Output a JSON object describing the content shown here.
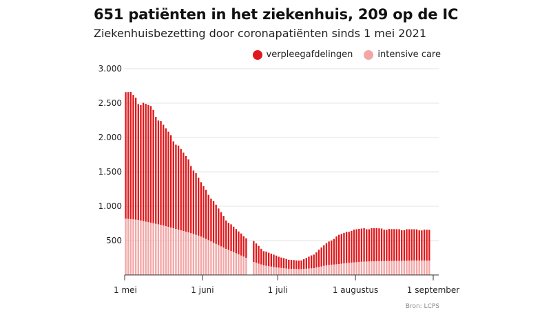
{
  "header": {
    "title": "651 patiënten in het ziekenhuis, 209 op de IC",
    "subtitle": "Ziekenhuisbezetting door coronapatiënten sinds 1 mei 2021"
  },
  "source": "Bron: LCPS",
  "colors": {
    "ward": "#e0181b",
    "ic": "#f4a6a6",
    "grid": "#e3e3e3",
    "axis": "#333333"
  },
  "chart_data": {
    "type": "bar",
    "stacked": true,
    "title": "651 patiënten in het ziekenhuis, 209 op de IC",
    "subtitle": "Ziekenhuisbezetting door coronapatiënten sinds 1 mei 2021",
    "xlabel": "",
    "ylabel": "",
    "ylim": [
      0,
      3000
    ],
    "yticks": [
      500,
      1000,
      1500,
      2000,
      2500,
      3000
    ],
    "ytick_labels": [
      "500",
      "1.000",
      "1.500",
      "2.000",
      "2.500",
      "3.000"
    ],
    "grid": true,
    "legend_position": "top-right",
    "start_date": "2021-05-01",
    "days": 122,
    "xticks": [
      {
        "label": "1 mei",
        "day": 0
      },
      {
        "label": "1 juni",
        "day": 31
      },
      {
        "label": "1 juli",
        "day": 61
      },
      {
        "label": "1 augustus",
        "day": 92
      },
      {
        "label": "1 september",
        "day": 123
      }
    ],
    "missing_days": [
      49,
      50
    ],
    "series": [
      {
        "name": "intensive care",
        "color": "#f4a6a6",
        "anchors": [
          [
            0,
            820
          ],
          [
            5,
            800
          ],
          [
            10,
            760
          ],
          [
            15,
            720
          ],
          [
            20,
            670
          ],
          [
            25,
            620
          ],
          [
            30,
            560
          ],
          [
            35,
            470
          ],
          [
            40,
            380
          ],
          [
            45,
            300
          ],
          [
            48,
            250
          ],
          [
            51,
            190
          ],
          [
            55,
            140
          ],
          [
            60,
            110
          ],
          [
            65,
            90
          ],
          [
            70,
            85
          ],
          [
            75,
            100
          ],
          [
            80,
            140
          ],
          [
            85,
            160
          ],
          [
            90,
            180
          ],
          [
            95,
            195
          ],
          [
            100,
            200
          ],
          [
            110,
            205
          ],
          [
            115,
            210
          ],
          [
            123,
            209
          ]
        ]
      },
      {
        "name": "verpleegafdelingen",
        "color": "#e0181b",
        "anchors": [
          [
            0,
            1820
          ],
          [
            2,
            1830
          ],
          [
            5,
            1720
          ],
          [
            10,
            1680
          ],
          [
            15,
            1450
          ],
          [
            20,
            1250
          ],
          [
            25,
            1050
          ],
          [
            30,
            780
          ],
          [
            35,
            600
          ],
          [
            40,
            420
          ],
          [
            45,
            330
          ],
          [
            48,
            290
          ],
          [
            51,
            300
          ],
          [
            55,
            210
          ],
          [
            60,
            170
          ],
          [
            65,
            130
          ],
          [
            70,
            125
          ],
          [
            75,
            200
          ],
          [
            80,
            320
          ],
          [
            85,
            420
          ],
          [
            90,
            470
          ],
          [
            95,
            480
          ],
          [
            100,
            475
          ],
          [
            105,
            460
          ],
          [
            110,
            455
          ],
          [
            115,
            450
          ],
          [
            123,
            442
          ]
        ]
      }
    ]
  },
  "legend": {
    "items": [
      {
        "label": "verpleegafdelingen",
        "color": "#e0181b"
      },
      {
        "label": "intensive care",
        "color": "#f4a6a6"
      }
    ]
  }
}
